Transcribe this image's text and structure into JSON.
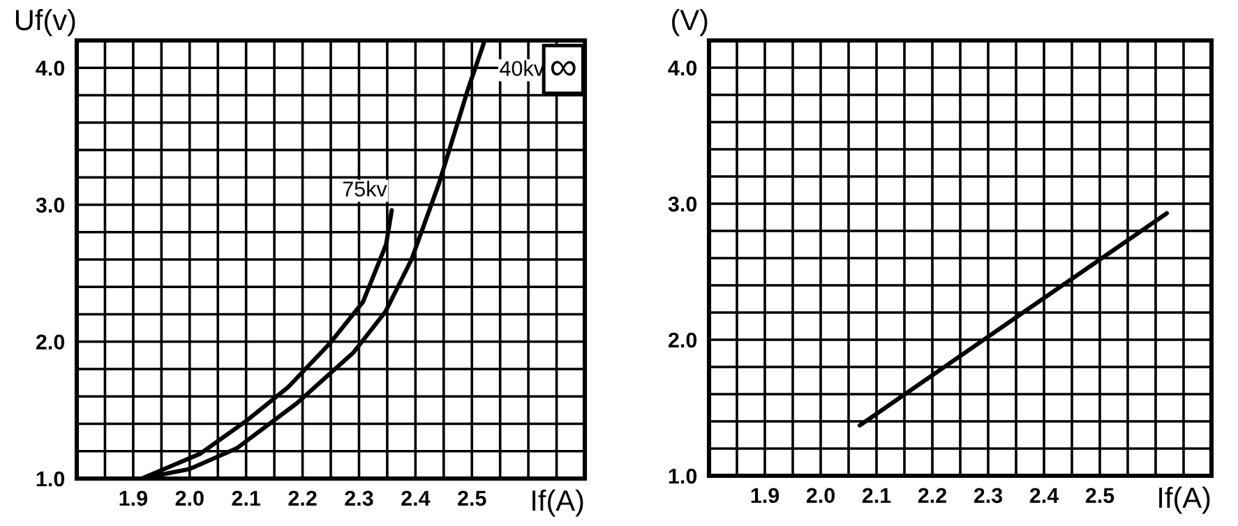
{
  "chart_data": [
    {
      "type": "line",
      "xlabel": "If(A)",
      "ylabel": "Uf(v)",
      "xlim": [
        1.8,
        2.7
      ],
      "ylim": [
        1.0,
        4.2
      ],
      "xticks": [
        {
          "value": 1.85,
          "label": null
        },
        {
          "value": 1.9,
          "label": "1.9"
        },
        {
          "value": 1.95,
          "label": null
        },
        {
          "value": 2.0,
          "label": "2.0"
        },
        {
          "value": 2.05,
          "label": null
        },
        {
          "value": 2.1,
          "label": "2.1"
        },
        {
          "value": 2.15,
          "label": null
        },
        {
          "value": 2.2,
          "label": "2.2"
        },
        {
          "value": 2.25,
          "label": null
        },
        {
          "value": 2.3,
          "label": "2.3"
        },
        {
          "value": 2.35,
          "label": null
        },
        {
          "value": 2.4,
          "label": "2.4"
        },
        {
          "value": 2.45,
          "label": null
        },
        {
          "value": 2.5,
          "label": "2.5"
        },
        {
          "value": 2.55,
          "label": null
        },
        {
          "value": 2.6,
          "label": null
        },
        {
          "value": 2.65,
          "label": null
        }
      ],
      "yticks": [
        {
          "value": 1.0,
          "label": "1.0"
        },
        {
          "value": 1.2,
          "label": null
        },
        {
          "value": 1.4,
          "label": null
        },
        {
          "value": 1.6,
          "label": null
        },
        {
          "value": 1.8,
          "label": null
        },
        {
          "value": 2.0,
          "label": "2.0"
        },
        {
          "value": 2.2,
          "label": null
        },
        {
          "value": 2.4,
          "label": null
        },
        {
          "value": 2.6,
          "label": null
        },
        {
          "value": 2.8,
          "label": null
        },
        {
          "value": 3.0,
          "label": "3.0"
        },
        {
          "value": 3.2,
          "label": null
        },
        {
          "value": 3.4,
          "label": null
        },
        {
          "value": 3.6,
          "label": null
        },
        {
          "value": 3.8,
          "label": null
        },
        {
          "value": 4.0,
          "label": "4.0"
        }
      ],
      "grid": true,
      "line_style": "solid",
      "marker": "none",
      "series": [
        {
          "name": "75kv",
          "color": "#000000",
          "x": [
            1.915,
            2.018,
            2.1,
            2.175,
            2.249,
            2.307,
            2.348,
            2.358
          ],
          "values": [
            1.0,
            1.18,
            1.42,
            1.67,
            1.99,
            2.29,
            2.71,
            2.96
          ]
        },
        {
          "name": "40kv",
          "color": "#000000",
          "x": [
            1.915,
            2.0,
            2.083,
            2.19,
            2.29,
            2.347,
            2.393,
            2.442,
            2.492,
            2.521
          ],
          "values": [
            1.0,
            1.07,
            1.22,
            1.55,
            1.92,
            2.22,
            2.6,
            3.16,
            3.83,
            4.18
          ]
        }
      ],
      "annotations": [
        "∞"
      ]
    },
    {
      "type": "line",
      "xlabel": "If(A)",
      "ylabel": "(V)",
      "xlim": [
        1.8,
        2.7
      ],
      "ylim": [
        1.0,
        4.2
      ],
      "xticks": [
        {
          "value": 1.85,
          "label": null
        },
        {
          "value": 1.9,
          "label": "1.9"
        },
        {
          "value": 1.95,
          "label": null
        },
        {
          "value": 2.0,
          "label": "2.0"
        },
        {
          "value": 2.05,
          "label": null
        },
        {
          "value": 2.1,
          "label": "2.1"
        },
        {
          "value": 2.15,
          "label": null
        },
        {
          "value": 2.2,
          "label": "2.2"
        },
        {
          "value": 2.25,
          "label": null
        },
        {
          "value": 2.3,
          "label": "2.3"
        },
        {
          "value": 2.35,
          "label": null
        },
        {
          "value": 2.4,
          "label": "2.4"
        },
        {
          "value": 2.45,
          "label": null
        },
        {
          "value": 2.5,
          "label": "2.5"
        },
        {
          "value": 2.55,
          "label": null
        },
        {
          "value": 2.6,
          "label": null
        },
        {
          "value": 2.65,
          "label": null
        }
      ],
      "yticks": [
        {
          "value": 1.0,
          "label": "1.0"
        },
        {
          "value": 1.2,
          "label": null
        },
        {
          "value": 1.4,
          "label": null
        },
        {
          "value": 1.6,
          "label": null
        },
        {
          "value": 1.8,
          "label": null
        },
        {
          "value": 2.0,
          "label": "2.0"
        },
        {
          "value": 2.2,
          "label": null
        },
        {
          "value": 2.4,
          "label": null
        },
        {
          "value": 2.6,
          "label": null
        },
        {
          "value": 2.8,
          "label": null
        },
        {
          "value": 3.0,
          "label": "3.0"
        },
        {
          "value": 3.2,
          "label": null
        },
        {
          "value": 3.4,
          "label": null
        },
        {
          "value": 3.6,
          "label": null
        },
        {
          "value": 3.8,
          "label": null
        },
        {
          "value": 4.0,
          "label": "4.0"
        }
      ],
      "grid": true,
      "line_style": "solid",
      "marker": "none",
      "series": [
        {
          "color": "#000000",
          "x": [
            2.07,
            2.62
          ],
          "values": [
            1.37,
            2.93
          ]
        }
      ]
    }
  ]
}
